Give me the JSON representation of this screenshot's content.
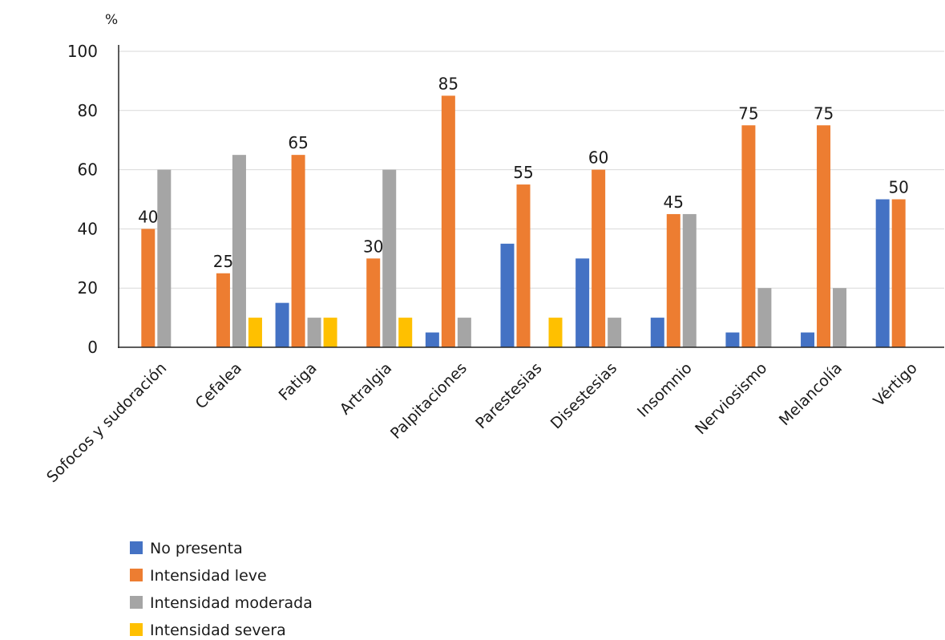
{
  "chart_data": {
    "type": "bar",
    "ylabel": "%",
    "ylim": [
      0,
      100
    ],
    "yticks": [
      "0",
      "20",
      "40",
      "60",
      "80",
      "100"
    ],
    "grid": true,
    "legend_position": "bottom-left",
    "categories": [
      "Sofocos y sudoración",
      "Cefalea",
      "Fatiga",
      "Artralgia",
      "Palpitaciones",
      "Parestesias",
      "Disestesias",
      "Insomnio",
      "Nerviosismo",
      "Melancolía",
      "Vértigo"
    ],
    "series": [
      {
        "name": "No presenta",
        "color": "#4472C4",
        "values": [
          0,
          0,
          15,
          0,
          5,
          35,
          30,
          10,
          5,
          5,
          50
        ]
      },
      {
        "name": "Intensidad leve",
        "color": "#ED7D31",
        "values": [
          40,
          25,
          65,
          30,
          85,
          55,
          60,
          45,
          75,
          75,
          50
        ]
      },
      {
        "name": "Intensidad moderada",
        "color": "#A5A5A5",
        "values": [
          60,
          65,
          10,
          60,
          10,
          0,
          10,
          45,
          20,
          20,
          0
        ]
      },
      {
        "name": "Intensidad severa",
        "color": "#FFC000",
        "values": [
          0,
          10,
          10,
          10,
          0,
          10,
          0,
          0,
          0,
          0,
          0
        ]
      }
    ],
    "data_labels": {
      "series": "Intensidad leve",
      "text": [
        "40",
        "25",
        "65",
        "30",
        "85",
        "55",
        "60",
        "45",
        "75",
        "75",
        "50"
      ]
    }
  }
}
